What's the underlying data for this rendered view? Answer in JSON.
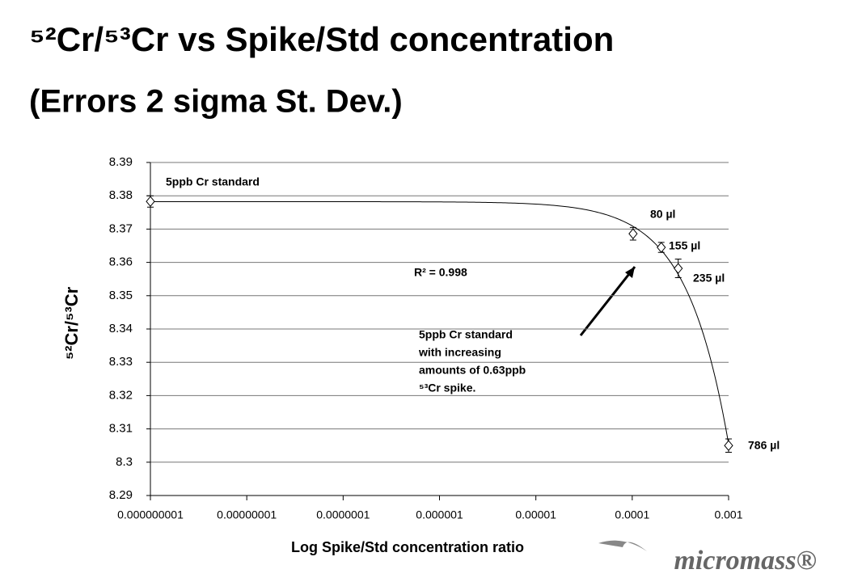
{
  "chart_data": {
    "type": "scatter",
    "title": "⁵²Cr/⁵³Cr vs Spike/Std concentration",
    "subtitle": "(Errors 2 sigma St. Dev.)",
    "x_label": "Log Spike/Std concentration ratio",
    "y_label": "⁵²Cr/⁵³Cr",
    "x": [
      1e-09,
      0.000102,
      0.0002,
      0.0003,
      0.001
    ],
    "values": [
      8.3783,
      8.3686,
      8.3645,
      8.3582,
      8.305
    ],
    "errors": [
      0.0017,
      0.0019,
      0.0015,
      0.0028,
      0.002
    ],
    "point_labels": [
      "5ppb Cr standard",
      "80 µl",
      "155 µl",
      "235 µl",
      "786 µl"
    ],
    "r_squared": "R² = 0.998",
    "note": [
      "5ppb Cr standard",
      "with increasing",
      "amounts of 0.63ppb",
      "⁵³Cr spike."
    ],
    "x_log": true,
    "xlim": [
      1e-09,
      0.001
    ],
    "xticks": [
      {
        "value": 1e-09,
        "label": "0.000000001"
      },
      {
        "value": 1e-08,
        "label": "0.00000001"
      },
      {
        "value": 1e-07,
        "label": "0.0000001"
      },
      1e-06,
      1e-05,
      0.0001,
      0.001
    ],
    "ylim": [
      8.29,
      8.39
    ],
    "yticks": [
      8.29,
      8.3,
      8.31,
      8.32,
      8.33,
      8.34,
      8.35,
      8.36,
      8.37,
      8.38,
      8.39
    ],
    "grid": true,
    "color": "#000000",
    "logo": "micromass®"
  }
}
